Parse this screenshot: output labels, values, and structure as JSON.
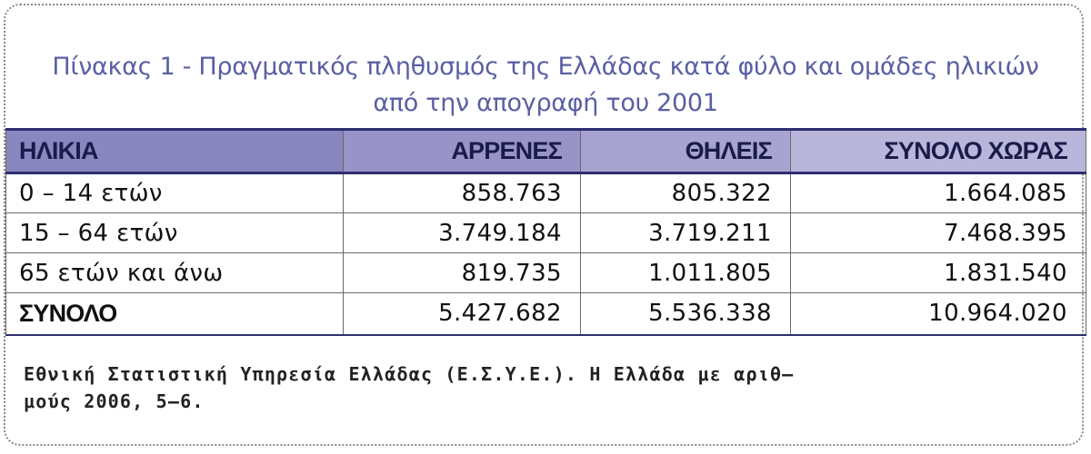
{
  "title": {
    "line1": "Πίνακας 1 - Πραγματικός πληθυσμός της Ελλάδας κατά φύλο και ομάδες ηλικιών",
    "line2": "από την απογραφή του 2001"
  },
  "table": {
    "headers": [
      "ΗΛΙΚΙΑ",
      "ΑΡΡΕΝΕΣ",
      "ΘΗΛΕΙΣ",
      "ΣΥΝΟΛΟ ΧΩΡΑΣ"
    ],
    "rows": [
      [
        "0 – 14 ετών",
        "858.763",
        "805.322",
        "1.664.085"
      ],
      [
        "15 – 64 ετών",
        "3.749.184",
        "3.719.211",
        "7.468.395"
      ],
      [
        "65 ετών και άνω",
        "819.735",
        "1.011.805",
        "1.831.540"
      ]
    ],
    "total": [
      "ΣΥΝΟΛΟ",
      "5.427.682",
      "5.536.338",
      "10.964.020"
    ]
  },
  "source": {
    "line1": "Εθνική Στατιστική Υπηρεσία Ελλάδας (Ε.Σ.Υ.Ε.). Η Ελλάδα με αριθ–",
    "line2": "μούς 2006, 5–6."
  },
  "colors": {
    "title": "#5a5fa3",
    "header_bg": "#9894c8",
    "header_text": "#1b1b4a",
    "rule": "#2e2e6e"
  }
}
